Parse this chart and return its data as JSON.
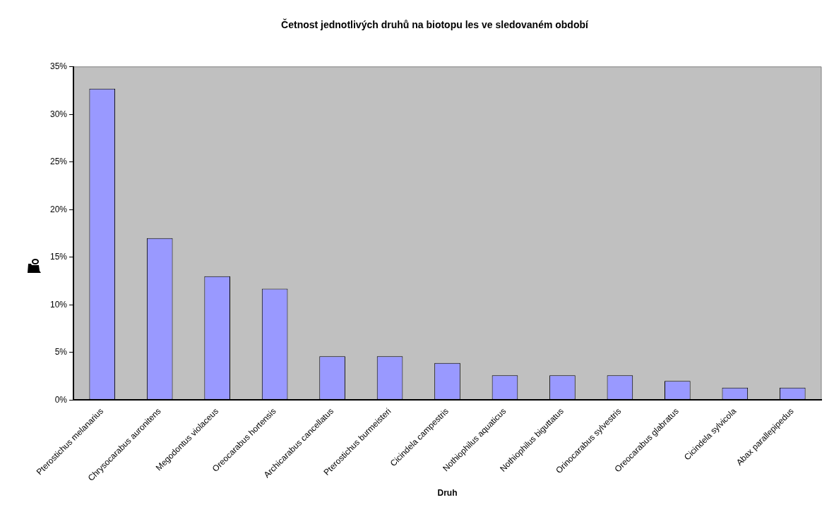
{
  "chart_data": {
    "type": "bar",
    "title": "Četnost jednotlivých druhů na biotopu les ve sledovaném období",
    "xlabel": "Druh",
    "categories": [
      "Pterostichus melanarius",
      "Chrysocarabus auronitens",
      "Megodontus violaceus",
      "Oreocarabus hortensis",
      "Archicarabus cancellatus",
      "Pterostichus burmeisteri",
      "Cicindela campestris",
      "Nothiophilus aquaticus",
      "Nothiophilus biguttatus",
      "Orinocarabus sylvestris",
      "Oreocarabus glabratus",
      "Cicindela sylvicola",
      "Abax parallepipedus"
    ],
    "values": [
      32.7,
      17.0,
      13.0,
      11.7,
      4.6,
      4.6,
      3.9,
      2.6,
      2.6,
      2.6,
      2.0,
      1.3,
      1.3
    ],
    "color": "#9999ff",
    "ylim": [
      0,
      35
    ],
    "yticks": [
      {
        "value": 0,
        "label": "0%"
      },
      {
        "value": 5,
        "label": "5%"
      },
      {
        "value": 10,
        "label": "10%"
      },
      {
        "value": 15,
        "label": "15%"
      },
      {
        "value": 20,
        "label": "20%"
      },
      {
        "value": 25,
        "label": "25%"
      },
      {
        "value": 30,
        "label": "30%"
      },
      {
        "value": 35,
        "label": "35%"
      }
    ],
    "grid": false,
    "legend": false
  }
}
